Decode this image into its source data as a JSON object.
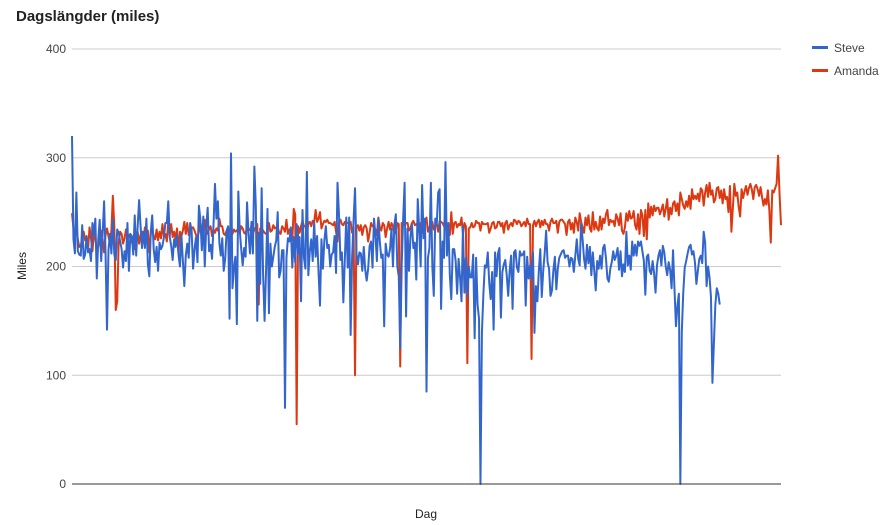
{
  "chart_data": {
    "type": "line",
    "title": "Dagslängder (miles)",
    "xlabel": "Dag",
    "ylabel": "Miles",
    "ylim": [
      0,
      400
    ],
    "yticks": [
      0,
      100,
      200,
      300,
      400
    ],
    "grid": true,
    "legend_position": "top-right",
    "x": "day index 0–358 (no x tick labels shown)",
    "series": [
      {
        "name": "Steve",
        "color": "#3366cc",
        "values": [
          320,
          225,
          212,
          268,
          214,
          211,
          210,
          238,
          207,
          211,
          228,
          213,
          216,
          205,
          240,
          230,
          244,
          189,
          225,
          243,
          205,
          230,
          260,
          212,
          142,
          215,
          230,
          212,
          243,
          211,
          206,
          234,
          231,
          223,
          216,
          199,
          214,
          205,
          240,
          196,
          230,
          228,
          211,
          247,
          210,
          237,
          261,
          237,
          217,
          232,
          217,
          244,
          202,
          191,
          232,
          247,
          216,
          204,
          218,
          196,
          222,
          216,
          219,
          227,
          240,
          240,
          260,
          227,
          219,
          206,
          225,
          218,
          229,
          211,
          200,
          229,
          205,
          182,
          210,
          221,
          208,
          240,
          233,
          198,
          216,
          227,
          204,
          256,
          243,
          215,
          246,
          200,
          236,
          254,
          214,
          220,
          207,
          238,
          276,
          244,
          260,
          222,
          210,
          226,
          196,
          207,
          233,
          237,
          152,
          304,
          180,
          199,
          209,
          147,
          269,
          233,
          216,
          201,
          217,
          209,
          259,
          230,
          212,
          241,
          212,
          292,
          256,
          150,
          231,
          184,
          272,
          192,
          150,
          196,
          253,
          157,
          221,
          200,
          209,
          218,
          224,
          250,
          190,
          196,
          215,
          215,
          70,
          208,
          226,
          223,
          236,
          199,
          227,
          204,
          239,
          212,
          227,
          168,
          252,
          208,
          198,
          287,
          192,
          214,
          225,
          205,
          241,
          209,
          228,
          195,
          164,
          225,
          198,
          224,
          237,
          217,
          220,
          200,
          211,
          213,
          228,
          194,
          277,
          248,
          206,
          213,
          167,
          206,
          245,
          199,
          245,
          137,
          208,
          242,
          272,
          212,
          202,
          213,
          212,
          196,
          218,
          197,
          187,
          198,
          219,
          223,
          199,
          244,
          229,
          205,
          244,
          223,
          208,
          211,
          145,
          221,
          211,
          209,
          216,
          235,
          200,
          239,
          248,
          200,
          191,
          125,
          202,
          244,
          277,
          154,
          235,
          196,
          227,
          239,
          217,
          222,
          188,
          262,
          233,
          200,
          275,
          226,
          244,
          85,
          208,
          217,
          277,
          200,
          173,
          244,
          238,
          268,
          271,
          161,
          223,
          208,
          296,
          210,
          240,
          192,
          170,
          216,
          216,
          205,
          175,
          207,
          190,
          168,
          237,
          176,
          208,
          173,
          200,
          190,
          190,
          211,
          134,
          208,
          165,
          152,
          0,
          140,
          175,
          201,
          199,
          213,
          185,
          170,
          195,
          142,
          213,
          191,
          212,
          217,
          153,
          195,
          202,
          206,
          192,
          173,
          196,
          210,
          161,
          213,
          215,
          199,
          195,
          214,
          210,
          211,
          214,
          164,
          209,
          189,
          201,
          189,
          213,
          139,
          182,
          168,
          196,
          216,
          172,
          196,
          212,
          233,
          204,
          198,
          173,
          178,
          197,
          209,
          179,
          198,
          208,
          211,
          214,
          215,
          208,
          210,
          210,
          200,
          208,
          207,
          195,
          210,
          225,
          207,
          201,
          240,
          225,
          207,
          198,
          220,
          203,
          218,
          192,
          213,
          196,
          178,
          205,
          198,
          210,
          198,
          217,
          220,
          208,
          189,
          186,
          198,
          204,
          214,
          206,
          210,
          217,
          197,
          214,
          191,
          202,
          195,
          232,
          201,
          210,
          197,
          223,
          210,
          220,
          210,
          223,
          219,
          223,
          214,
          205,
          174,
          209,
          211,
          196,
          193,
          205,
          194,
          176,
          201,
          210,
          215,
          201,
          219,
          213,
          200,
          192,
          204,
          197,
          180,
          215,
          179,
          145,
          164,
          175,
          0,
          140,
          176,
          199,
          205,
          212,
          218,
          220,
          211,
          214,
          204,
          184,
          196,
          207,
          210,
          203,
          232,
          222,
          182,
          200,
          190,
          172,
          93,
          129,
          165,
          180,
          175,
          165
        ],
        "note": "Steve line ends around day ~270 of ~358"
      },
      {
        "name": "Amanda",
        "color": "#dc3912",
        "values": [
          249,
          235,
          230,
          236,
          225,
          218,
          219,
          226,
          232,
          224,
          227,
          215,
          236,
          226,
          214,
          231,
          225,
          216,
          218,
          227,
          233,
          225,
          213,
          229,
          235,
          228,
          221,
          233,
          265,
          237,
          160,
          168,
          223,
          232,
          230,
          221,
          226,
          234,
          225,
          229,
          226,
          222,
          224,
          216,
          231,
          232,
          221,
          229,
          232,
          224,
          236,
          225,
          233,
          213,
          230,
          235,
          227,
          225,
          234,
          224,
          232,
          226,
          239,
          227,
          230,
          223,
          241,
          229,
          239,
          227,
          232,
          225,
          235,
          213,
          232,
          228,
          233,
          241,
          230,
          240,
          229,
          232,
          235,
          236,
          233,
          229,
          227,
          232,
          241,
          232,
          226,
          243,
          234,
          230,
          235,
          237,
          228,
          234,
          231,
          235,
          233,
          244,
          237,
          237,
          230,
          229,
          233,
          236,
          232,
          238,
          230,
          234,
          232,
          233,
          235,
          231,
          237,
          235,
          231,
          230,
          236,
          233,
          234,
          237,
          230,
          234,
          236,
          239,
          165,
          235,
          235,
          233,
          231,
          230,
          232,
          240,
          232,
          233,
          238,
          235,
          236,
          236,
          231,
          230,
          237,
          235,
          232,
          243,
          230,
          234,
          233,
          224,
          253,
          248,
          55,
          237,
          231,
          237,
          242,
          237,
          237,
          229,
          240,
          241,
          237,
          242,
          241,
          252,
          241,
          244,
          250,
          235,
          239,
          242,
          241,
          243,
          240,
          240,
          239,
          238,
          241,
          232,
          223,
          241,
          243,
          239,
          238,
          241,
          241,
          240,
          240,
          241,
          231,
          236,
          100,
          236,
          238,
          233,
          238,
          229,
          236,
          238,
          235,
          223,
          231,
          240,
          237,
          236,
          234,
          229,
          245,
          236,
          233,
          240,
          238,
          227,
          235,
          241,
          234,
          240,
          237,
          230,
          232,
          240,
          239,
          108,
          240,
          239,
          238,
          240,
          240,
          233,
          235,
          240,
          242,
          238,
          239,
          237,
          231,
          240,
          231,
          239,
          240,
          245,
          232,
          236,
          238,
          241,
          234,
          238,
          239,
          232,
          242,
          241,
          240,
          237,
          235,
          233,
          238,
          229,
          250,
          230,
          240,
          241,
          236,
          239,
          238,
          245,
          230,
          240,
          237,
          111,
          235,
          236,
          240,
          236,
          237,
          242,
          240,
          240,
          233,
          241,
          239,
          239,
          239,
          240,
          231,
          235,
          240,
          241,
          235,
          236,
          241,
          241,
          237,
          240,
          231,
          240,
          242,
          234,
          238,
          240,
          237,
          243,
          242,
          239,
          242,
          241,
          237,
          239,
          241,
          237,
          244,
          239,
          239,
          115,
          238,
          242,
          237,
          241,
          243,
          236,
          242,
          238,
          243,
          239,
          239,
          233,
          241,
          244,
          240,
          240,
          242,
          231,
          241,
          243,
          243,
          241,
          239,
          229,
          241,
          243,
          234,
          240,
          231,
          245,
          241,
          233,
          249,
          241,
          236,
          231,
          245,
          238,
          247,
          235,
          232,
          250,
          234,
          241,
          235,
          233,
          246,
          234,
          244,
          240,
          248,
          252,
          238,
          243,
          241,
          242,
          237,
          248,
          244,
          238,
          249,
          233,
          230,
          236,
          249,
          242,
          251,
          244,
          245,
          251,
          238,
          234,
          248,
          230,
          252,
          247,
          228,
          252,
          225,
          258,
          245,
          255,
          247,
          256,
          251,
          254,
          254,
          248,
          252,
          257,
          246,
          253,
          262,
          243,
          254,
          248,
          258,
          260,
          251,
          258,
          247,
          268,
          262,
          256,
          253,
          260,
          255,
          265,
          253,
          271,
          262,
          265,
          262,
          267,
          260,
          272,
          270,
          256,
          268,
          275,
          264,
          277,
          266,
          270,
          259,
          262,
          272,
          273,
          263,
          270,
          258,
          271,
          262,
          264,
          250,
          274,
          232,
          254,
          276,
          265,
          268,
          255,
          246,
          271,
          263,
          269,
          274,
          266,
          272,
          276,
          271,
          262,
          273,
          275,
          271,
          265,
          273,
          264,
          256,
          262,
          257,
          270,
          252,
          222,
          270,
          268,
          272,
          276,
          302,
          267,
          238
        ]
      }
    ]
  }
}
